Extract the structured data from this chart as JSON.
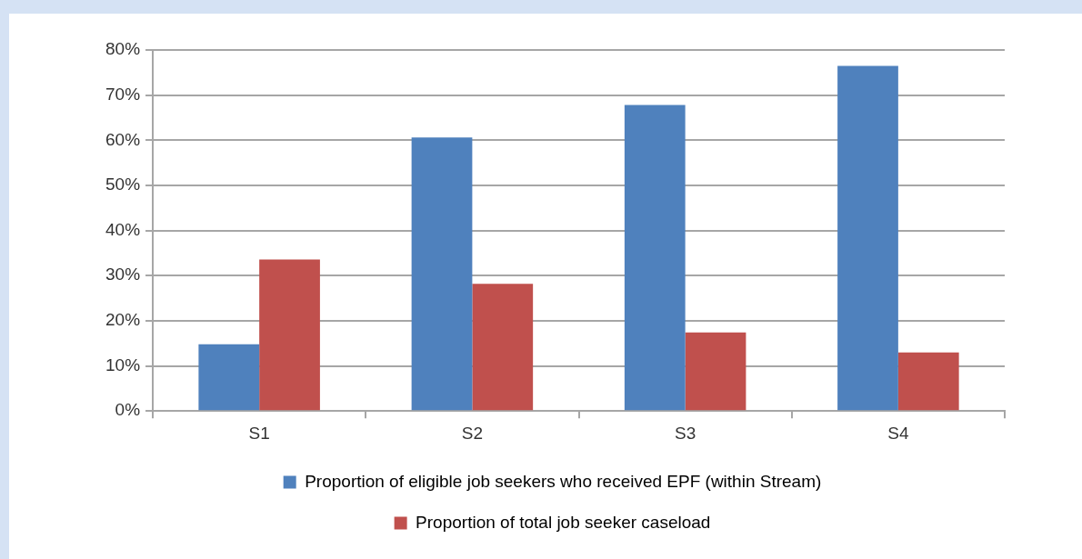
{
  "chart_data": {
    "type": "bar",
    "categories": [
      "S1",
      "S2",
      "S3",
      "S4"
    ],
    "series": [
      {
        "name": "Proportion of eligible job seekers who received EPF (within Stream)",
        "color": "#4f81bd",
        "values": [
          14.8,
          60.6,
          67.8,
          76.5
        ]
      },
      {
        "name": "Proportion of total job seeker caseload",
        "color": "#c0504d",
        "values": [
          33.6,
          28.2,
          17.4,
          13.0
        ]
      }
    ],
    "ylim": [
      0,
      80
    ],
    "yticks": [
      {
        "value": 0,
        "label": "0%"
      },
      {
        "value": 10,
        "label": "10%"
      },
      {
        "value": 20,
        "label": "20%"
      },
      {
        "value": 30,
        "label": "30%"
      },
      {
        "value": 40,
        "label": "40%"
      },
      {
        "value": 50,
        "label": "50%"
      },
      {
        "value": 60,
        "label": "60%"
      },
      {
        "value": 70,
        "label": "70%"
      },
      {
        "value": 80,
        "label": "80%"
      }
    ],
    "grid": "y",
    "legend": "bottom"
  }
}
